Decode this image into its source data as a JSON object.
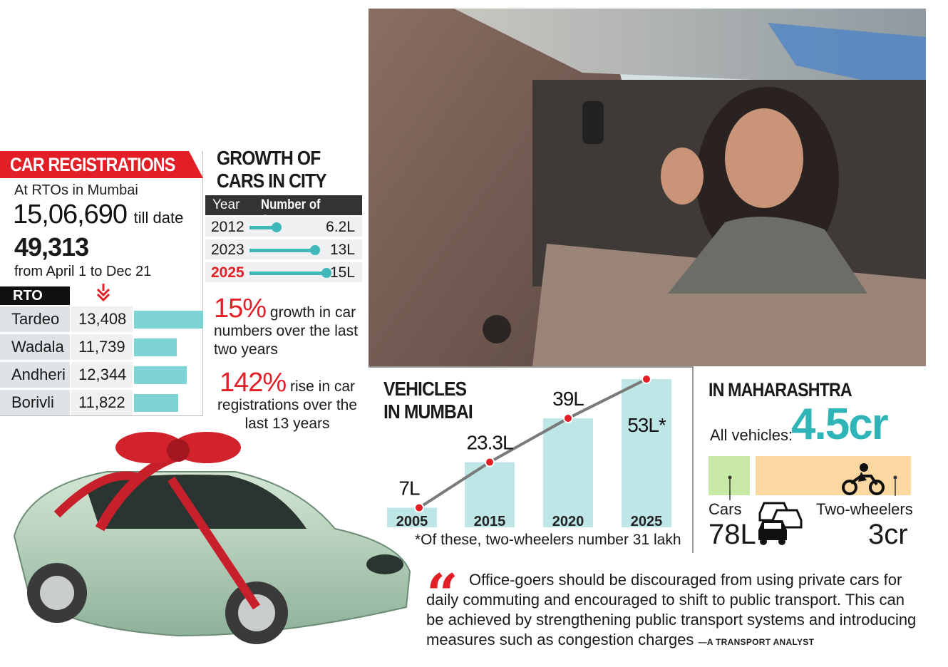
{
  "registrations": {
    "title": "CAR REGISTRATIONS",
    "subtitle": "At RTOs in Mumbai",
    "total": "15,06,690",
    "total_suffix": "till date",
    "period_count": "49,313",
    "period_label": "from April 1 to Dec 21",
    "rto_header": "RTO",
    "title_color": "#e21e26"
  },
  "growth": {
    "title_line1": "GROWTH OF",
    "title_line2": "CARS IN CITY",
    "col_year": "Year",
    "col_cars": "Number of Cars",
    "stat1_value": "15%",
    "stat1_text": "growth in car numbers over the last two years",
    "stat2_value": "142%",
    "stat2_text": "rise in car registrations over the last 13 years"
  },
  "vehicles": {
    "title_line1": "VEHICLES",
    "title_line2": "IN MUMBAI",
    "note": "*Of these, two-wheelers number 31 lakh"
  },
  "maharashtra": {
    "title": "IN MAHARASHTRA",
    "all_label": "All vehicles:",
    "all_value": "4.5cr",
    "cars_label": "Cars",
    "cars_value": "78L",
    "tw_label": "Two-wheelers",
    "tw_value": "3cr",
    "cars_value_num": 0.78,
    "tw_value_num": 3
  },
  "quote": {
    "text": "Office-goers should be discouraged from using private cars for daily commuting and encouraged to shift to public transport. This can be achieved by strengthening public transport systems and introducing measures such as congestion charges",
    "attribution": "—A TRANSPORT ANALYST"
  },
  "icons": {
    "photo": "woman-holding-car-keys-photo",
    "car_illustration": "gift-wrapped-car-illustration",
    "arrow": "double-chevron-down-icon",
    "cars": "cars-icon",
    "motorbike": "motorbike-icon",
    "quote": "quote-mark-icon"
  },
  "chart_data": [
    {
      "type": "bar",
      "title": "CAR REGISTRATIONS",
      "categories": [
        "Tardeo",
        "Wadala",
        "Andheri",
        "Borivli"
      ],
      "values": [
        13408,
        11739,
        12344,
        11822
      ],
      "labels": [
        "13,408",
        "11,739",
        "12,344",
        "11,822"
      ],
      "orientation": "horizontal"
    },
    {
      "type": "bar",
      "title": "GROWTH OF CARS IN CITY",
      "categories": [
        "2012",
        "2023",
        "2025"
      ],
      "values": [
        6.2,
        13,
        15
      ],
      "labels": [
        "6.2L",
        "13L",
        "15L"
      ],
      "highlight": "2025",
      "highlight_color": "#e21e26",
      "orientation": "horizontal"
    },
    {
      "type": "bar",
      "title": "VEHICLES IN MUMBAI",
      "categories": [
        "2005",
        "2015",
        "2020",
        "2025"
      ],
      "values": [
        7,
        23.3,
        39,
        53
      ],
      "labels": [
        "7L",
        "23.3L",
        "39L",
        "53L*"
      ],
      "ylim": [
        0,
        53
      ],
      "overlay": "line",
      "bar_color": "#bfe6e6",
      "line_color": "#7a7a7a",
      "dot_color": "#e21e26"
    }
  ]
}
